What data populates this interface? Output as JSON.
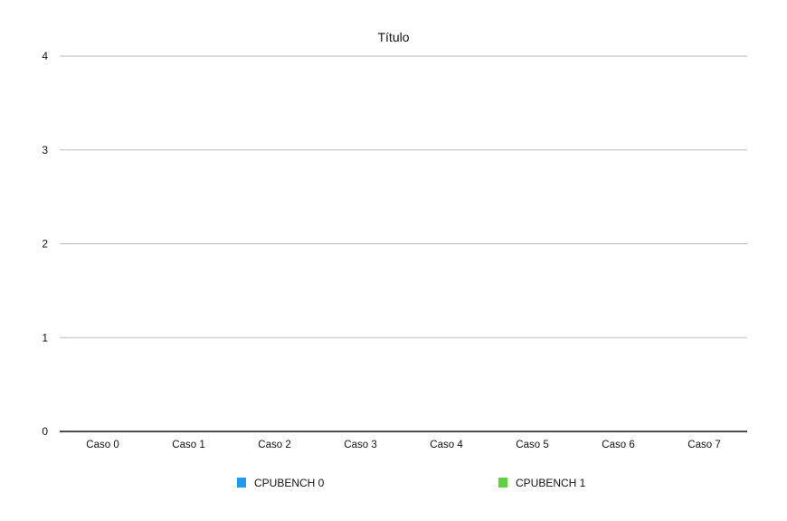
{
  "chart_data": {
    "type": "bar",
    "title": "Título",
    "xlabel": "",
    "ylabel": "",
    "categories": [
      "Caso 0",
      "Caso 1",
      "Caso 2",
      "Caso 3",
      "Caso 4",
      "Caso 5",
      "Caso 6",
      "Caso 7"
    ],
    "series": [
      {
        "name": "CPUBENCH 0",
        "color": "#1a9bf0",
        "values": [
          0,
          0,
          0,
          0,
          0,
          0,
          0,
          0
        ]
      },
      {
        "name": "CPUBENCH 1",
        "color": "#5ed23c",
        "values": [
          0,
          0,
          0,
          0,
          0,
          0,
          0,
          0
        ]
      }
    ],
    "ylim": [
      0,
      4
    ],
    "yticks": [
      0,
      1,
      2,
      3,
      4
    ],
    "grid": true,
    "legend_position": "bottom"
  }
}
